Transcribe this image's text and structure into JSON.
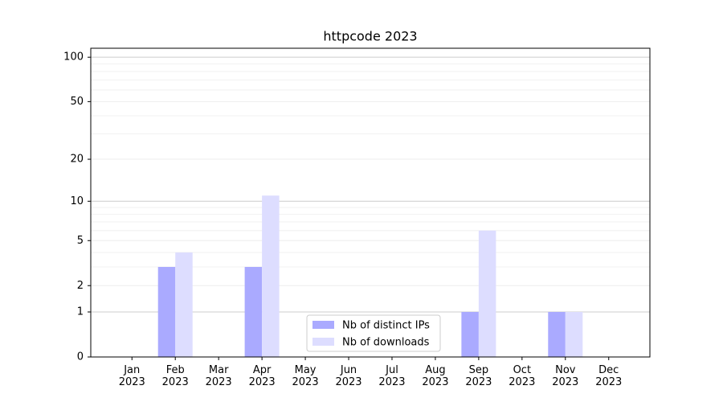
{
  "chart_data": {
    "type": "bar",
    "title": "httpcode 2023",
    "categories": [
      "Jan\n2023",
      "Feb\n2023",
      "Mar\n2023",
      "Apr\n2023",
      "May\n2023",
      "Jun\n2023",
      "Jul\n2023",
      "Aug\n2023",
      "Sep\n2023",
      "Oct\n2023",
      "Nov\n2023",
      "Dec\n2023"
    ],
    "series": [
      {
        "name": "Nb of distinct IPs",
        "color": "#aaaaff",
        "values": [
          0,
          3,
          0,
          3,
          0,
          0,
          0,
          0,
          1,
          0,
          1,
          0
        ]
      },
      {
        "name": "Nb of downloads",
        "color": "#ddddff",
        "values": [
          0,
          4,
          0,
          11,
          0,
          0,
          0,
          0,
          6,
          0,
          1,
          0
        ]
      }
    ],
    "yscale": "log1p",
    "ylim": [
      0,
      115
    ],
    "yticks": [
      0,
      1,
      2,
      5,
      10,
      20,
      50,
      100
    ],
    "y_minor_ticks": [
      3,
      4,
      6,
      7,
      8,
      9,
      30,
      40,
      60,
      70,
      80,
      90
    ],
    "grid": true,
    "legend": "lower center"
  }
}
